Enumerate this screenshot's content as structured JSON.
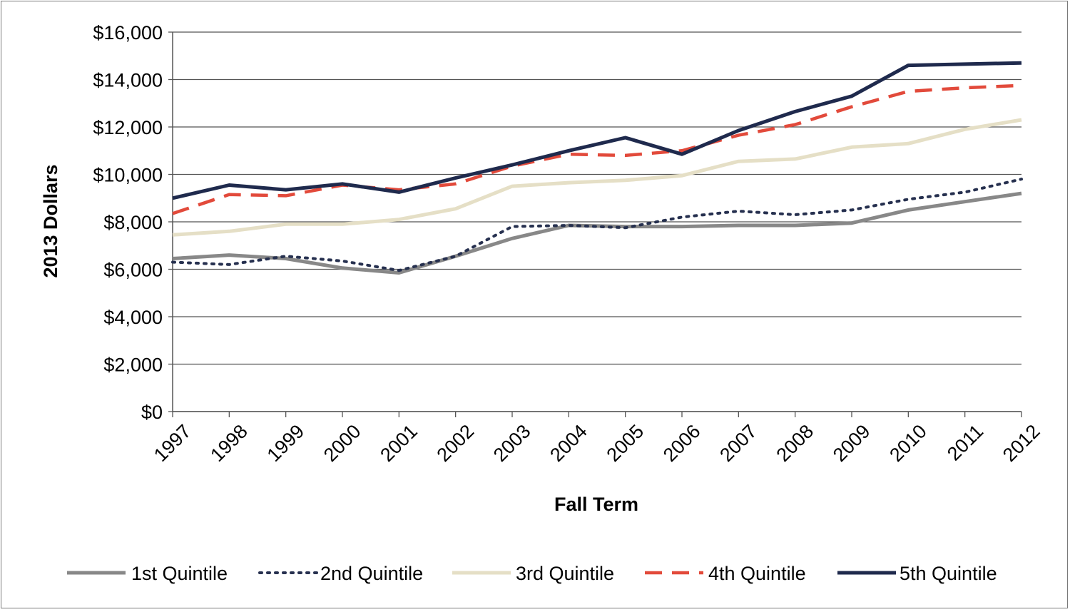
{
  "chart_data": {
    "type": "line",
    "title": "",
    "xlabel": "Fall Term",
    "ylabel": "2013 Dollars",
    "ylim": [
      0,
      16000
    ],
    "y_ticks": [
      0,
      2000,
      4000,
      6000,
      8000,
      10000,
      12000,
      14000,
      16000
    ],
    "y_tick_labels": [
      "$0",
      "$2,000",
      "$4,000",
      "$6,000",
      "$8,000",
      "$10,000",
      "$12,000",
      "$14,000",
      "$16,000"
    ],
    "grid": true,
    "legend_position": "bottom",
    "categories": [
      "1997",
      "1998",
      "1999",
      "2000",
      "2001",
      "2002",
      "2003",
      "2004",
      "2005",
      "2006",
      "2007",
      "2008",
      "2009",
      "2010",
      "2011",
      "2012"
    ],
    "series": [
      {
        "name": "1st Quintile",
        "color": "#888888",
        "dash": "solid",
        "values": [
          6450,
          6600,
          6450,
          6050,
          5850,
          6550,
          7300,
          7850,
          7800,
          7800,
          7850,
          7850,
          7950,
          8500,
          8850,
          9200
        ]
      },
      {
        "name": "2nd Quintile",
        "color": "#26304f",
        "dash": "dotted",
        "values": [
          6300,
          6200,
          6550,
          6350,
          5950,
          6550,
          7800,
          7850,
          7750,
          8200,
          8450,
          8300,
          8500,
          8950,
          9250,
          9800
        ]
      },
      {
        "name": "3rd Quintile",
        "color": "#e5dfc6",
        "dash": "solid",
        "values": [
          7450,
          7600,
          7900,
          7900,
          8100,
          8550,
          9500,
          9650,
          9750,
          9950,
          10550,
          10650,
          11150,
          11300,
          11900,
          12300
        ]
      },
      {
        "name": "4th Quintile",
        "color": "#e24a3b",
        "dash": "dashed",
        "values": [
          8350,
          9150,
          9100,
          9550,
          9350,
          9600,
          10350,
          10850,
          10800,
          11000,
          11650,
          12100,
          12850,
          13500,
          13650,
          13750
        ]
      },
      {
        "name": "5th Quintile",
        "color": "#1f2a4d",
        "dash": "solid",
        "values": [
          9000,
          9550,
          9350,
          9600,
          9250,
          9850,
          10400,
          11000,
          11550,
          10850,
          11850,
          12650,
          13300,
          14600,
          14650,
          14700
        ]
      }
    ]
  }
}
